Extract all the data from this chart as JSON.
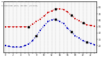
{
  "hours": [
    0,
    1,
    2,
    3,
    4,
    5,
    6,
    7,
    8,
    9,
    10,
    11,
    12,
    13,
    14,
    15,
    16,
    17,
    18,
    19,
    20,
    21,
    22,
    23
  ],
  "temp_red": [
    50,
    50,
    50,
    50,
    50,
    50,
    50,
    54,
    58,
    62,
    67,
    72,
    75,
    78,
    78,
    77,
    73,
    68,
    63,
    59,
    56,
    53,
    52,
    51
  ],
  "thsw_blue": [
    20,
    19,
    18,
    18,
    18,
    20,
    23,
    28,
    36,
    44,
    52,
    58,
    61,
    62,
    58,
    55,
    48,
    42,
    36,
    32,
    28,
    26,
    24,
    22
  ],
  "black_markers_red": [
    6,
    13,
    17,
    20
  ],
  "black_markers_blue": [
    8,
    13,
    17,
    21
  ],
  "ylim": [
    10,
    90
  ],
  "ytick_vals": [
    20,
    30,
    40,
    50,
    60,
    70,
    80
  ],
  "xlim": [
    -0.5,
    23.5
  ],
  "bg_color": "#ffffff",
  "plot_bg": "#f8f8f8",
  "red_color": "#cc0000",
  "blue_color": "#0000bb",
  "black_color": "#000000",
  "grid_color": "#bbbbbb",
  "marker_size": 1.5,
  "line_width": 0.9
}
